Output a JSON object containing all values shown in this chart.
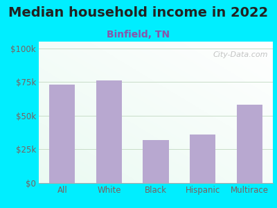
{
  "title": "Median household income in 2022",
  "subtitle": "Binfield, TN",
  "categories": [
    "All",
    "White",
    "Black",
    "Hispanic",
    "Multirace"
  ],
  "values": [
    73000,
    76000,
    32000,
    36000,
    58000
  ],
  "bar_color": "#b8a8d0",
  "background_outer": "#00eeff",
  "yticks": [
    0,
    25000,
    50000,
    75000,
    100000
  ],
  "ytick_labels": [
    "$0",
    "$25k",
    "$50k",
    "$75k",
    "$100k"
  ],
  "ylim": [
    0,
    105000
  ],
  "title_fontsize": 14,
  "subtitle_fontsize": 10,
  "tick_fontsize": 8.5,
  "tick_color": "#7a6060",
  "title_color": "#222222",
  "subtitle_color": "#8855aa",
  "watermark": "City-Data.com",
  "bar_width": 0.55,
  "grid_color": "#c8ddc8",
  "spine_color": "#aaaaaa"
}
